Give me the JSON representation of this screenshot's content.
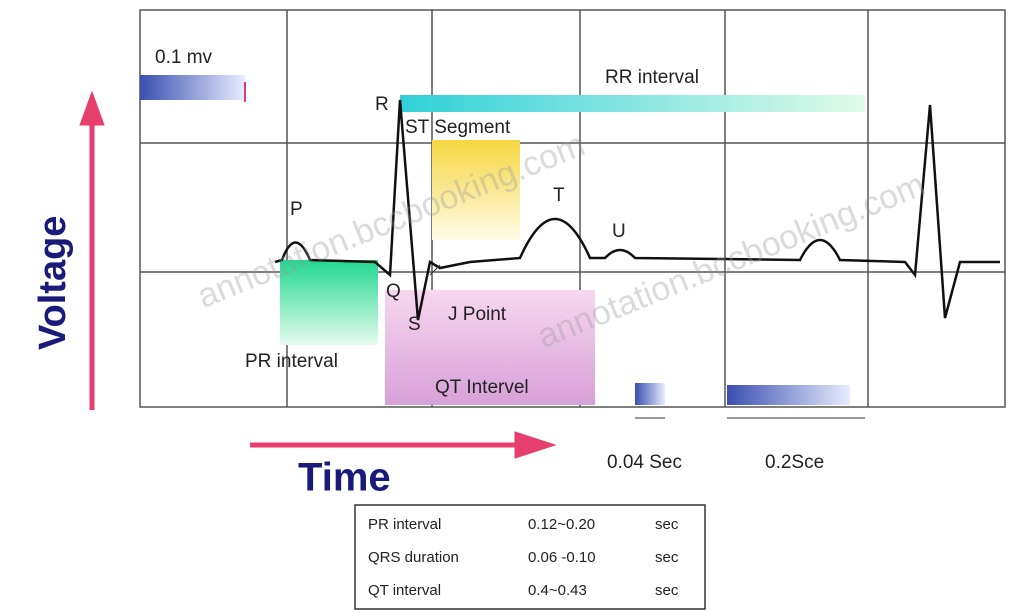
{
  "labels": {
    "scale_mv": "0.1 mv",
    "rr": "RR interval",
    "r": "R",
    "st": "ST Segment",
    "p": "P",
    "t": "T",
    "u": "U",
    "q": "Q",
    "s": "S",
    "j": "J Point",
    "pr": "PR interval",
    "qt": "QT Intervel",
    "voltage": "Voltage",
    "time": "Time",
    "small_box": "0.04 Sec",
    "large_box": "0.2Sce"
  },
  "table": {
    "rows": [
      [
        "PR interval",
        "0.12~0.20",
        "sec"
      ],
      [
        "QRS duration",
        "0.06 -0.10",
        "sec"
      ],
      [
        "QT interval",
        "0.4~0.43",
        "sec"
      ]
    ]
  },
  "watermark": "annotation.bccbooking.com"
}
